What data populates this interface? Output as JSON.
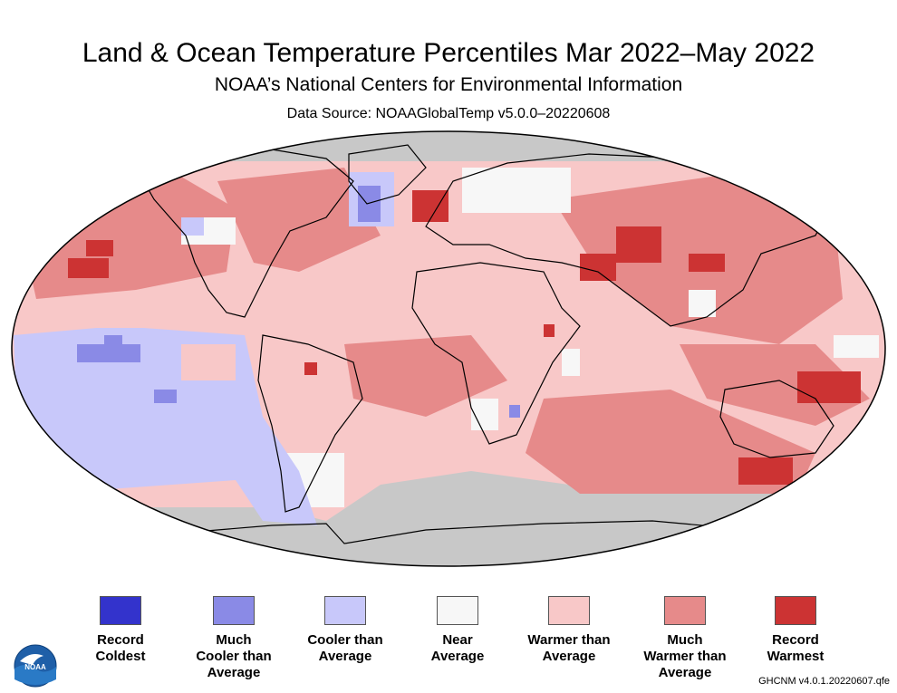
{
  "header": {
    "title": "Land & Ocean Temperature Percentiles Mar 2022–May 2022",
    "subtitle": "NOAA’s National Centers for Environmental Information",
    "source": "Data Source: NOAAGlobalTemp v5.0.0–20220608"
  },
  "colors": {
    "no_data": "#c8c8c8",
    "record_coldest": "#3333cc",
    "much_cooler": "#8a8ae6",
    "cooler": "#c8c8fa",
    "near": "#f7f7f7",
    "warmer": "#f8c8c8",
    "much_warmer": "#e68a8a",
    "record_warmest": "#cc3333"
  },
  "legend": [
    {
      "label_lines": [
        "Record",
        "Coldest"
      ],
      "color_key": "record_coldest"
    },
    {
      "label_lines": [
        "Much",
        "Cooler than",
        "Average"
      ],
      "color_key": "much_cooler"
    },
    {
      "label_lines": [
        "Cooler than",
        "Average"
      ],
      "color_key": "cooler"
    },
    {
      "label_lines": [
        "Near",
        "Average"
      ],
      "color_key": "near"
    },
    {
      "label_lines": [
        "Warmer than",
        "Average"
      ],
      "color_key": "warmer"
    },
    {
      "label_lines": [
        "Much",
        "Warmer than",
        "Average"
      ],
      "color_key": "much_warmer"
    },
    {
      "label_lines": [
        "Record",
        "Warmest"
      ],
      "color_key": "record_warmest"
    }
  ],
  "logo": {
    "text": "NOAA"
  },
  "footer": {
    "text": "GHCNM v4.0.1.20220607.qfe"
  }
}
